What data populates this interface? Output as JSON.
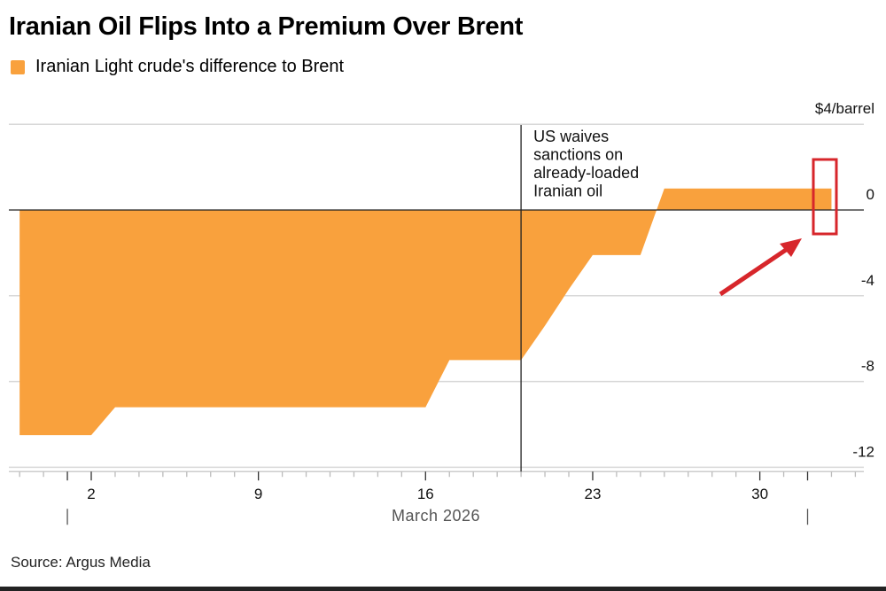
{
  "chart_data": {
    "type": "area",
    "title": "Iranian Oil Flips Into a Premium Over Brent",
    "legend": [
      "Iranian Light crude's difference to Brent"
    ],
    "series": [
      {
        "name": "Iranian Light crude's difference to Brent",
        "color": "#f9a13d",
        "points": [
          [
            "2026-02-27",
            -10.5
          ],
          [
            "2026-02-28",
            -10.5
          ],
          [
            "2026-03-01",
            -10.5
          ],
          [
            "2026-03-02",
            -10.5
          ],
          [
            "2026-03-03",
            -9.2
          ],
          [
            "2026-03-04",
            -9.2
          ],
          [
            "2026-03-05",
            -9.2
          ],
          [
            "2026-03-06",
            -9.2
          ],
          [
            "2026-03-07",
            -9.2
          ],
          [
            "2026-03-08",
            -9.2
          ],
          [
            "2026-03-09",
            -9.2
          ],
          [
            "2026-03-10",
            -9.2
          ],
          [
            "2026-03-11",
            -9.2
          ],
          [
            "2026-03-12",
            -9.2
          ],
          [
            "2026-03-13",
            -9.2
          ],
          [
            "2026-03-14",
            -9.2
          ],
          [
            "2026-03-15",
            -9.2
          ],
          [
            "2026-03-16",
            -9.2
          ],
          [
            "2026-03-17",
            -7.0
          ],
          [
            "2026-03-18",
            -7.0
          ],
          [
            "2026-03-19",
            -7.0
          ],
          [
            "2026-03-20",
            -7.0
          ],
          [
            "2026-03-21",
            -5.4
          ],
          [
            "2026-03-22",
            -3.7
          ],
          [
            "2026-03-23",
            -2.1
          ],
          [
            "2026-03-24",
            -2.1
          ],
          [
            "2026-03-25",
            -2.1
          ],
          [
            "2026-03-26",
            1.0
          ],
          [
            "2026-03-27",
            1.0
          ],
          [
            "2026-03-28",
            1.0
          ],
          [
            "2026-03-29",
            1.0
          ],
          [
            "2026-03-30",
            1.0
          ],
          [
            "2026-03-31",
            1.0
          ],
          [
            "2026-04-01",
            1.0
          ],
          [
            "2026-04-02",
            1.0
          ]
        ]
      }
    ],
    "yunit": "$4/barrel",
    "ylim": [
      -12,
      4
    ],
    "yticks": [
      4,
      0,
      -4,
      -8,
      -12
    ],
    "ytick_labels": [
      "$4/barrel",
      "0",
      "-4",
      "-8",
      "-12"
    ],
    "xticks": [
      "2",
      "9",
      "16",
      "23",
      "30"
    ],
    "xlabel": "March 2026",
    "grid": true,
    "axis_side": "right",
    "annotation": {
      "date": "2026-03-20",
      "text": [
        "US waives",
        "sanctions on",
        "already-loaded",
        "Iranian oil"
      ]
    },
    "highlight": {
      "color": "#d7262b",
      "shape": "box-with-arrow",
      "target_date": "2026-04-02"
    }
  },
  "source": "Source: Argus Media"
}
